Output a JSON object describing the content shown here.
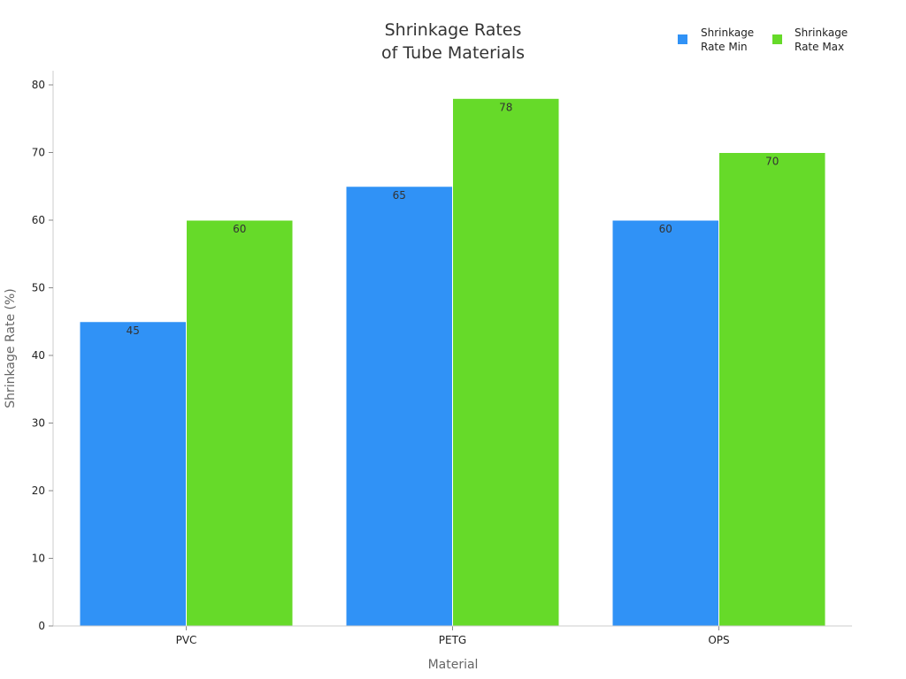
{
  "chart_data": {
    "type": "bar",
    "title_lines": [
      "Shrinkage Rates",
      "of Tube Materials"
    ],
    "xlabel": "Material",
    "ylabel": "Shrinkage Rate (%)",
    "categories": [
      "PVC",
      "PETG",
      "OPS"
    ],
    "series": [
      {
        "name_lines": [
          "Shrinkage",
          "Rate Min"
        ],
        "color": "#3092f6",
        "values": [
          45,
          65,
          60
        ]
      },
      {
        "name_lines": [
          "Shrinkage",
          "Rate Max"
        ],
        "color": "#66da29",
        "values": [
          60,
          78,
          70
        ]
      }
    ],
    "ylim": [
      0,
      80
    ],
    "yticks": [
      0,
      10,
      20,
      30,
      40,
      50,
      60,
      70,
      80
    ],
    "legend_position": "top-right",
    "grid": false
  }
}
